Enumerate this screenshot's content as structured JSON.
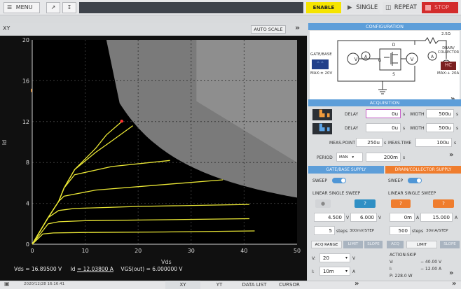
{
  "toolbar": {
    "menu": "MENU",
    "enable": "ENABLE",
    "single": "SINGLE",
    "repeat": "REPEAT",
    "stop": "STOP"
  },
  "graph": {
    "title": "XY",
    "auto_scale": "AUTO SCALE",
    "xlabel": "Vds",
    "ylabel": "Id",
    "x_ticks": [
      "0",
      "10",
      "20",
      "30",
      "40",
      "50"
    ],
    "y_ticks": [
      "0",
      "4",
      "8",
      "12",
      "16",
      "20"
    ],
    "vds_label": "Vds",
    "vds_value": "= 16.89500 V",
    "id_label": "Id",
    "id_value": "= 12.03800 A",
    "vgs_label": "VGS(out)",
    "vgs_value": "= 6.000000 V"
  },
  "chart_data": {
    "type": "line",
    "xlabel": "Vds",
    "ylabel": "Id",
    "xlim": [
      0,
      50
    ],
    "ylim": [
      0,
      20
    ],
    "series": [
      {
        "x": [
          0,
          3,
          5,
          6,
          8,
          12,
          14,
          16.9
        ],
        "y": [
          0,
          2.6,
          4.2,
          5.5,
          7.3,
          9.4,
          10.7,
          12.0
        ]
      },
      {
        "x": [
          0,
          3,
          5,
          6,
          8,
          12,
          15,
          19
        ],
        "y": [
          0,
          2.6,
          4.2,
          5.5,
          7.3,
          9.0,
          10.1,
          11.6
        ]
      },
      {
        "x": [
          0,
          3,
          5,
          6,
          8,
          15,
          26
        ],
        "y": [
          0,
          2.6,
          4.2,
          5.5,
          6.8,
          7.6,
          8.2
        ]
      },
      {
        "x": [
          0,
          3,
          5,
          6,
          12,
          24,
          36
        ],
        "y": [
          0,
          2.6,
          4.2,
          4.7,
          5.3,
          5.8,
          6.3
        ]
      },
      {
        "x": [
          0,
          3,
          5,
          8,
          20,
          41
        ],
        "y": [
          0,
          2.6,
          3.3,
          3.5,
          3.7,
          3.9
        ]
      },
      {
        "x": [
          0,
          3,
          5,
          10,
          25,
          41
        ],
        "y": [
          0,
          2.0,
          2.2,
          2.3,
          2.4,
          2.5
        ]
      },
      {
        "x": [
          0,
          2,
          4,
          10,
          25,
          42
        ],
        "y": [
          0,
          1.0,
          1.1,
          1.15,
          1.2,
          1.3
        ]
      }
    ]
  },
  "config": {
    "header": "CONFIGURATION",
    "gate_base": "GATE/BASE",
    "gate_max": "MAX:± 20V",
    "drain_collector": "DRAIN/ COLLECTOR",
    "drain_max": "MAX:+ 20A",
    "resistor": "2.5Ω"
  },
  "acquisition": {
    "header": "ACQUISITION",
    "delay_label": "DELAY",
    "delay1": "0u",
    "width_label": "WIDTH",
    "width1": "500u",
    "delay2": "0u",
    "width2": "500u",
    "unit_s": "s",
    "meas_point_label": "MEAS.POINT",
    "meas_point": "250u",
    "meas_time_label": "MEAS.TIME",
    "meas_time": "100u",
    "period_label": "PERIOD",
    "period_mode": "MAN",
    "period": "200m"
  },
  "gate": {
    "header": "GATE/BASE SUPPLY",
    "sweep": "SWEEP",
    "mode": "LINEAR SINGLE SWEEP",
    "start": "4.500",
    "stop": "6.000",
    "unit": "V",
    "steps": "5",
    "steps_label": "steps",
    "step_size": "300mV/STEP"
  },
  "drain": {
    "header": "DRAIN/COLLECTOR SUPPLY",
    "sweep": "SWEEP",
    "mode": "LINEAR SINGLE SWEEP",
    "start": "0m",
    "stop": "15.000",
    "unit": "A",
    "steps": "500",
    "steps_label": "steps",
    "step_size": "30mA/STEP"
  },
  "bottom": {
    "acq_range": "ACQ RANGE",
    "limit": "LIMIT",
    "slope": "SLOPE",
    "acq": "ACQ",
    "v_label": "V:",
    "v_value": "20",
    "v_unit": "V",
    "i_label": "I:",
    "i_value": "10m",
    "i_unit": "A",
    "action": "ACTION:SKIP",
    "lim_v_label": "V:",
    "lim_v": "− 40.00 V",
    "lim_i_label": "I:",
    "lim_i": "− 12.00 A",
    "lim_p": "P: 228.0 W"
  },
  "statusbar": {
    "timestamp": "2020/12/28 16:16:41",
    "xy": "XY",
    "yt": "YT",
    "data_list": "DATA LIST",
    "cursor": "CURSOR"
  },
  "colors": {
    "accent_blue": "#5d9ed9",
    "orange": "#ef7d2e",
    "enable": "#f5e400",
    "trace": "#e9e635",
    "stop": "#d32c2c"
  }
}
